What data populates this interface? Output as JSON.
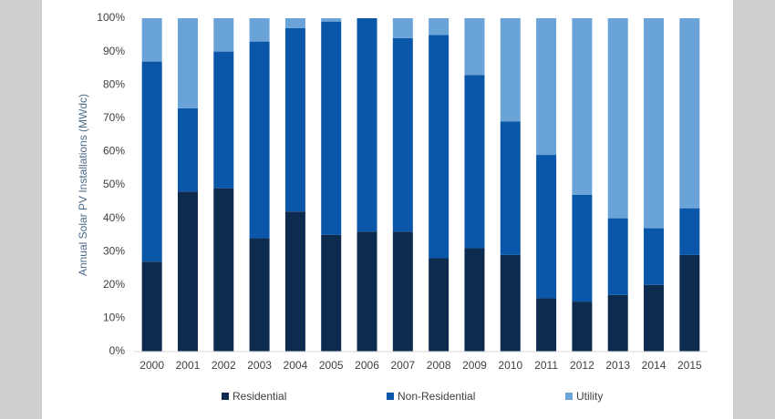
{
  "chart_data": {
    "type": "stacked_bar",
    "y_label": "Annual Solar PV Installations (MWdc)",
    "categories": [
      "2000",
      "2001",
      "2002",
      "2003",
      "2004",
      "2005",
      "2006",
      "2007",
      "2008",
      "2009",
      "2010",
      "2011",
      "2012",
      "2013",
      "2014",
      "2015"
    ],
    "series": [
      {
        "name": "Residential",
        "color": "#0d2a4f",
        "values": [
          27,
          48,
          49,
          34,
          42,
          35,
          36,
          36,
          28,
          31,
          29,
          16,
          15,
          17,
          20,
          29
        ]
      },
      {
        "name": "Non-Residential",
        "color": "#0a56a8",
        "values": [
          60,
          25,
          41,
          59,
          55,
          64,
          64,
          58,
          67,
          52,
          40,
          43,
          32,
          23,
          17,
          14
        ]
      },
      {
        "name": "Utility",
        "color": "#6aa3d8",
        "values": [
          13,
          27,
          10,
          7,
          3,
          1,
          0,
          6,
          5,
          17,
          31,
          41,
          53,
          60,
          63,
          57
        ]
      }
    ],
    "ylim": [
      0,
      100
    ],
    "yticks": [
      {
        "value": 0,
        "label": "0%"
      },
      {
        "value": 10,
        "label": "10%"
      },
      {
        "value": 20,
        "label": "20%"
      },
      {
        "value": 30,
        "label": "30%"
      },
      {
        "value": 40,
        "label": "40%"
      },
      {
        "value": 50,
        "label": "50%"
      },
      {
        "value": 60,
        "label": "60%"
      },
      {
        "value": 70,
        "label": "70%"
      },
      {
        "value": 80,
        "label": "80%"
      },
      {
        "value": 90,
        "label": "90%"
      },
      {
        "value": 100,
        "label": "100%"
      }
    ]
  }
}
